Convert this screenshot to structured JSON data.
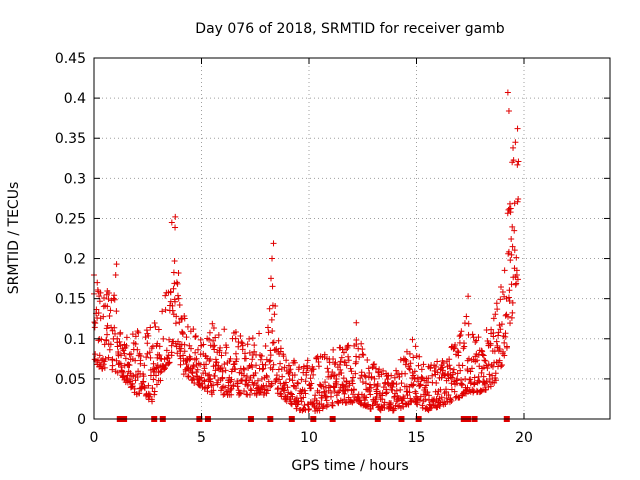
{
  "chart_data": {
    "type": "scatter",
    "title": "Day 076 of 2018, SRMTID for receiver gamb",
    "xlabel": "GPS time / hours",
    "ylabel": "SRMTID / TECUs",
    "xlim": [
      0,
      24
    ],
    "ylim": [
      0,
      0.45
    ],
    "x_ticks": [
      0,
      5,
      10,
      15,
      20
    ],
    "y_ticks": [
      0,
      0.05,
      0.1,
      0.15,
      0.2,
      0.25,
      0.3,
      0.35,
      0.4,
      0.45
    ],
    "x_tick_labels": [
      "0",
      "5",
      "10",
      "15",
      "20"
    ],
    "y_tick_labels": [
      "0",
      "0.05",
      "0.1",
      "0.15",
      "0.2",
      "0.25",
      "0.3",
      "0.35",
      "0.4",
      "0.45"
    ],
    "grid": true,
    "point_marker": "+",
    "point_color": "#e00000",
    "envelope": [
      {
        "x": 0.0,
        "lo": 0.07,
        "hi": 0.18
      },
      {
        "x": 0.5,
        "lo": 0.06,
        "hi": 0.15
      },
      {
        "x": 1.0,
        "lo": 0.06,
        "hi": 0.19
      },
      {
        "x": 1.3,
        "lo": 0.05,
        "hi": 0.1
      },
      {
        "x": 2.0,
        "lo": 0.03,
        "hi": 0.11
      },
      {
        "x": 2.8,
        "lo": 0.02,
        "hi": 0.12
      },
      {
        "x": 3.2,
        "lo": 0.06,
        "hi": 0.14
      },
      {
        "x": 3.5,
        "lo": 0.07,
        "hi": 0.19
      },
      {
        "x": 3.8,
        "lo": 0.09,
        "hi": 0.25
      },
      {
        "x": 4.2,
        "lo": 0.05,
        "hi": 0.13
      },
      {
        "x": 5.0,
        "lo": 0.04,
        "hi": 0.1
      },
      {
        "x": 5.5,
        "lo": 0.03,
        "hi": 0.12
      },
      {
        "x": 6.5,
        "lo": 0.03,
        "hi": 0.11
      },
      {
        "x": 7.5,
        "lo": 0.03,
        "hi": 0.1
      },
      {
        "x": 8.0,
        "lo": 0.03,
        "hi": 0.12
      },
      {
        "x": 8.3,
        "lo": 0.04,
        "hi": 0.2
      },
      {
        "x": 8.6,
        "lo": 0.03,
        "hi": 0.09
      },
      {
        "x": 9.5,
        "lo": 0.01,
        "hi": 0.07
      },
      {
        "x": 10.5,
        "lo": 0.01,
        "hi": 0.08
      },
      {
        "x": 11.5,
        "lo": 0.02,
        "hi": 0.09
      },
      {
        "x": 12.3,
        "lo": 0.02,
        "hi": 0.11
      },
      {
        "x": 13.0,
        "lo": 0.01,
        "hi": 0.07
      },
      {
        "x": 14.0,
        "lo": 0.01,
        "hi": 0.06
      },
      {
        "x": 14.8,
        "lo": 0.02,
        "hi": 0.1
      },
      {
        "x": 15.5,
        "lo": 0.01,
        "hi": 0.07
      },
      {
        "x": 16.5,
        "lo": 0.02,
        "hi": 0.08
      },
      {
        "x": 17.3,
        "lo": 0.03,
        "hi": 0.14
      },
      {
        "x": 17.8,
        "lo": 0.03,
        "hi": 0.1
      },
      {
        "x": 18.5,
        "lo": 0.04,
        "hi": 0.12
      },
      {
        "x": 19.0,
        "lo": 0.06,
        "hi": 0.19
      },
      {
        "x": 19.3,
        "lo": 0.1,
        "hi": 0.3
      },
      {
        "x": 19.6,
        "lo": 0.16,
        "hi": 0.36
      },
      {
        "x": 19.75,
        "lo": 0.18,
        "hi": 0.35
      }
    ],
    "spikes": [
      {
        "x": 0.15,
        "y": 0.17
      },
      {
        "x": 1.05,
        "y": 0.193
      },
      {
        "x": 3.62,
        "y": 0.245
      },
      {
        "x": 3.78,
        "y": 0.252
      },
      {
        "x": 8.35,
        "y": 0.219
      },
      {
        "x": 8.28,
        "y": 0.2
      },
      {
        "x": 12.2,
        "y": 0.12
      },
      {
        "x": 17.4,
        "y": 0.153
      },
      {
        "x": 19.25,
        "y": 0.407
      },
      {
        "x": 19.3,
        "y": 0.384
      },
      {
        "x": 19.7,
        "y": 0.362
      },
      {
        "x": 19.6,
        "y": 0.345
      },
      {
        "x": 19.45,
        "y": 0.32
      }
    ],
    "zero_markers_x": [
      1.2,
      1.4,
      2.8,
      3.2,
      4.9,
      5.3,
      7.3,
      8.2,
      9.2,
      10.2,
      11.1,
      13.2,
      14.3,
      15.1,
      17.2,
      17.4,
      17.7,
      19.2
    ]
  }
}
